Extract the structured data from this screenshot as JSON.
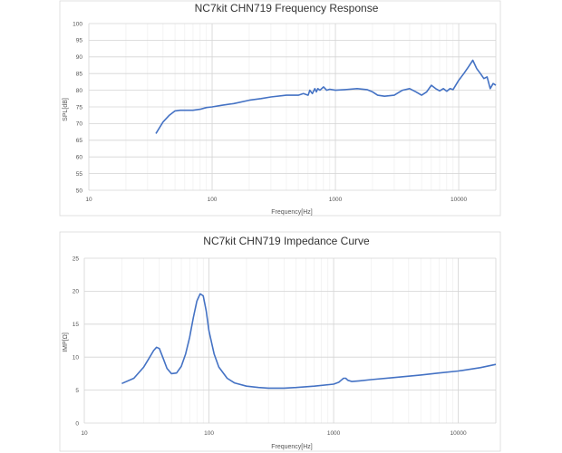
{
  "chart_data": [
    {
      "type": "line",
      "title": "NC7kit CHN719 Frequency Response",
      "xlabel": "Frequency[Hz]",
      "ylabel": "SPL[dB]",
      "x_scale": "log",
      "xlim": [
        10,
        20000
      ],
      "ylim": [
        50,
        100
      ],
      "x_ticks": [
        10,
        100,
        1000,
        10000
      ],
      "x_tick_labels": [
        "10",
        "100",
        "1000",
        "10000"
      ],
      "y_ticks": [
        50,
        55,
        60,
        65,
        70,
        75,
        80,
        85,
        90,
        95,
        100
      ],
      "y_tick_labels": [
        "50",
        "55",
        "60",
        "65",
        "70",
        "75",
        "80",
        "85",
        "90",
        "95",
        "100"
      ],
      "grid": true,
      "line_color": "#4472c4",
      "series": [
        {
          "x": [
            35,
            40,
            45,
            50,
            55,
            60,
            70,
            80,
            90,
            100,
            120,
            150,
            200,
            250,
            300,
            400,
            500,
            550,
            600,
            620,
            650,
            680,
            700,
            720,
            750,
            800,
            850,
            900,
            1000,
            1200,
            1500,
            1800,
            2000,
            2200,
            2500,
            3000,
            3500,
            4000,
            4500,
            5000,
            5500,
            6000,
            6500,
            7000,
            7500,
            8000,
            8500,
            9000,
            10000,
            11000,
            12000,
            13000,
            14000,
            15000,
            16000,
            17000,
            18000,
            19000,
            20000
          ],
          "y": [
            67,
            70.5,
            72.5,
            73.8,
            74,
            74,
            74,
            74.3,
            74.8,
            75,
            75.5,
            76,
            77,
            77.5,
            78,
            78.5,
            78.5,
            79,
            78.5,
            80,
            79,
            80.5,
            79.5,
            80.5,
            80,
            81,
            80,
            80.3,
            80,
            80.2,
            80.5,
            80.2,
            79.5,
            78.5,
            78.2,
            78.5,
            80,
            80.5,
            79.5,
            78.5,
            79.5,
            81.5,
            80.5,
            79.8,
            80.5,
            79.7,
            80.5,
            80.2,
            83,
            85,
            87,
            89,
            86.5,
            85,
            83.5,
            84,
            80.5,
            82,
            81.5
          ]
        }
      ]
    },
    {
      "type": "line",
      "title": "NC7kit CHN719 Impedance Curve",
      "xlabel": "Frequency[Hz]",
      "ylabel": "IMP[Ω]",
      "x_scale": "log",
      "xlim": [
        10,
        20000
      ],
      "ylim": [
        0,
        25
      ],
      "x_ticks": [
        10,
        100,
        1000,
        10000
      ],
      "x_tick_labels": [
        "10",
        "100",
        "1000",
        "10000"
      ],
      "y_ticks": [
        0,
        5,
        10,
        15,
        20,
        25
      ],
      "y_tick_labels": [
        "0",
        "5",
        "10",
        "15",
        "20",
        "25"
      ],
      "grid": true,
      "line_color": "#4472c4",
      "series": [
        {
          "x": [
            20,
            25,
            30,
            33,
            36,
            38,
            40,
            43,
            46,
            50,
            55,
            60,
            65,
            70,
            75,
            80,
            85,
            90,
            95,
            100,
            110,
            120,
            140,
            160,
            200,
            250,
            300,
            400,
            500,
            700,
            1000,
            1100,
            1150,
            1200,
            1250,
            1300,
            1400,
            1600,
            2000,
            3000,
            5000,
            7000,
            10000,
            15000,
            20000
          ],
          "y": [
            6,
            6.8,
            8.5,
            9.8,
            11,
            11.5,
            11.3,
            9.8,
            8.3,
            7.5,
            7.6,
            8.6,
            10.5,
            13,
            16,
            18.5,
            19.6,
            19.3,
            17,
            14,
            10.5,
            8.5,
            6.8,
            6.1,
            5.6,
            5.4,
            5.3,
            5.3,
            5.4,
            5.6,
            5.9,
            6.2,
            6.5,
            6.8,
            6.8,
            6.5,
            6.3,
            6.4,
            6.6,
            6.9,
            7.3,
            7.6,
            7.9,
            8.4,
            8.9
          ]
        }
      ]
    }
  ]
}
